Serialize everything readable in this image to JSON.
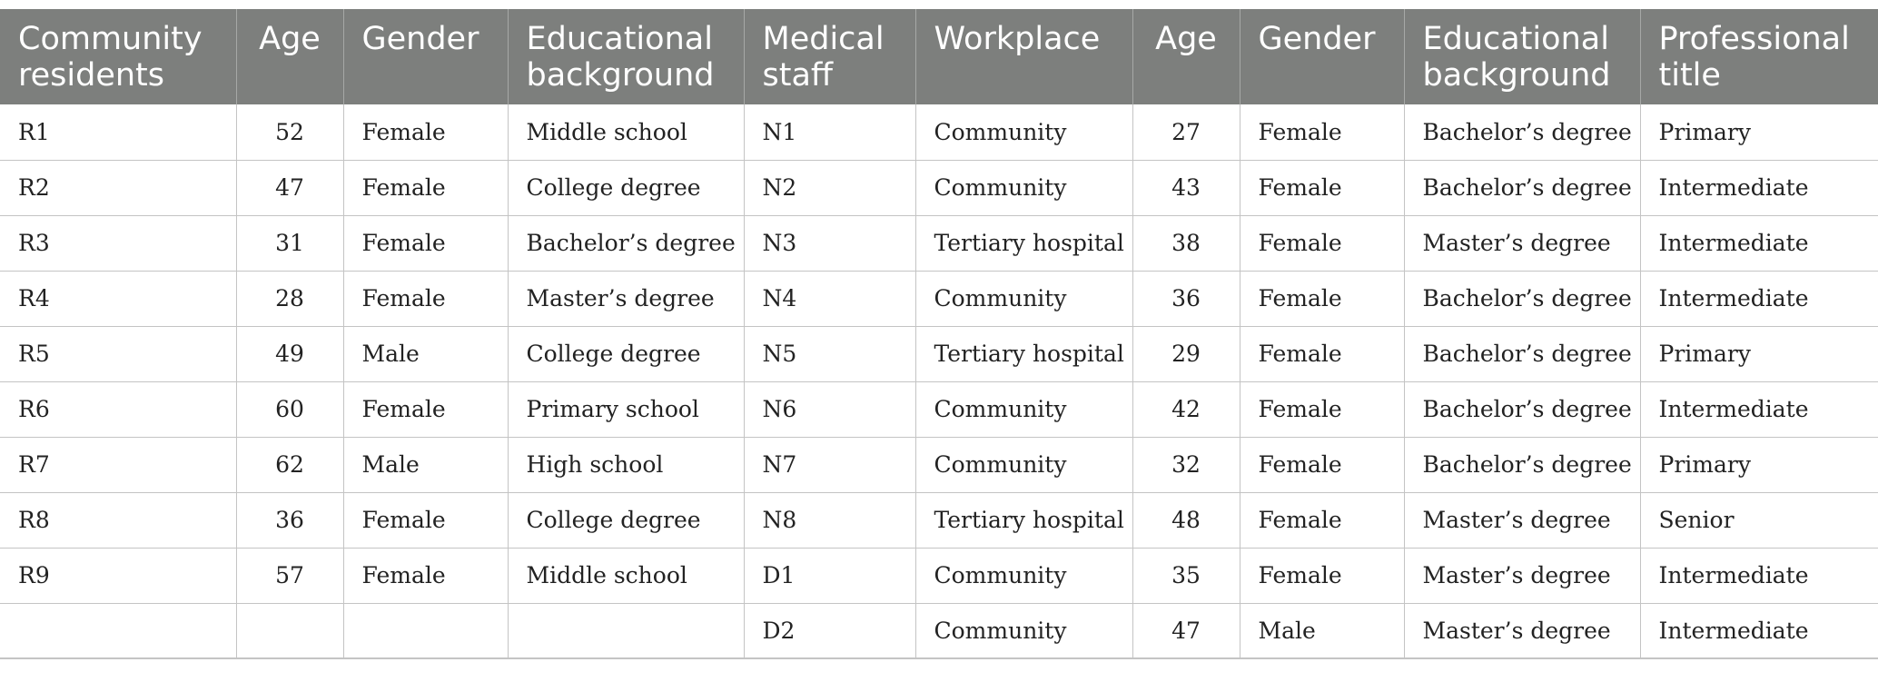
{
  "table": {
    "headers": [
      "Community residents",
      "Age",
      "Gender",
      "Educational background",
      "Medical staff",
      "Workplace",
      "Age",
      "Gender",
      "Educational background",
      "Professional title"
    ],
    "rows": [
      [
        "R1",
        "52",
        "Female",
        "Middle school",
        "N1",
        "Community",
        "27",
        "Female",
        "Bachelor’s degree",
        "Primary"
      ],
      [
        "R2",
        "47",
        "Female",
        "College degree",
        "N2",
        "Community",
        "43",
        "Female",
        "Bachelor’s degree",
        "Intermediate"
      ],
      [
        "R3",
        "31",
        "Female",
        "Bachelor’s degree",
        "N3",
        "Tertiary hospital",
        "38",
        "Female",
        "Master’s degree",
        "Intermediate"
      ],
      [
        "R4",
        "28",
        "Female",
        "Master’s degree",
        "N4",
        "Community",
        "36",
        "Female",
        "Bachelor’s degree",
        "Intermediate"
      ],
      [
        "R5",
        "49",
        "Male",
        "College degree",
        "N5",
        "Tertiary hospital",
        "29",
        "Female",
        "Bachelor’s degree",
        "Primary"
      ],
      [
        "R6",
        "60",
        "Female",
        "Primary school",
        "N6",
        "Community",
        "42",
        "Female",
        "Bachelor’s degree",
        "Intermediate"
      ],
      [
        "R7",
        "62",
        "Male",
        "High school",
        "N7",
        "Community",
        "32",
        "Female",
        "Bachelor’s degree",
        "Primary"
      ],
      [
        "R8",
        "36",
        "Female",
        "College degree",
        "N8",
        "Tertiary hospital",
        "48",
        "Female",
        "Master’s degree",
        "Senior"
      ],
      [
        "R9",
        "57",
        "Female",
        "Middle school",
        "D1",
        "Community",
        "35",
        "Female",
        "Master’s degree",
        "Intermediate"
      ],
      [
        "",
        "",
        "",
        "",
        "D2",
        "Community",
        "47",
        "Male",
        "Master’s degree",
        "Intermediate"
      ]
    ]
  }
}
